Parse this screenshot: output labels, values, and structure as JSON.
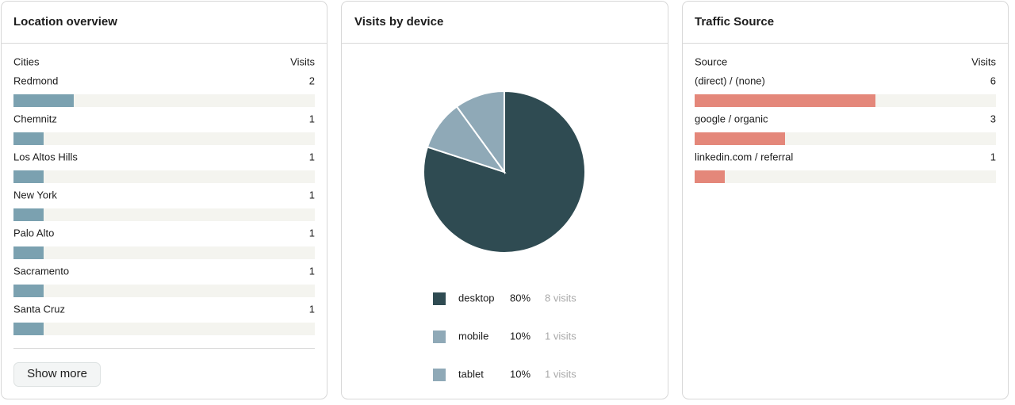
{
  "location": {
    "title": "Location overview",
    "columns": [
      "Cities",
      "Visits"
    ],
    "rows": [
      {
        "name": "Redmond",
        "value": 2
      },
      {
        "name": "Chemnitz",
        "value": 1
      },
      {
        "name": "Los Altos Hills",
        "value": 1
      },
      {
        "name": "New York",
        "value": 1
      },
      {
        "name": "Palo Alto",
        "value": 1
      },
      {
        "name": "Sacramento",
        "value": 1
      },
      {
        "name": "Santa Cruz",
        "value": 1
      }
    ],
    "xlim": [
      0,
      10
    ],
    "color": "#7ba1b0",
    "button": "Show more"
  },
  "chart_data": {
    "type": "pie",
    "title": "Visits by device",
    "categories": [
      "desktop",
      "mobile",
      "tablet"
    ],
    "values": [
      80,
      10,
      10
    ],
    "value_labels": [
      "80%",
      "10%",
      "10%"
    ],
    "visits": [
      "8 visits",
      "1 visits",
      "1 visits"
    ],
    "colors": [
      "#2f4b52",
      "#8fa9b7",
      "#8fa9b7"
    ]
  },
  "traffic": {
    "title": "Traffic Source",
    "columns": [
      "Source",
      "Visits"
    ],
    "rows": [
      {
        "name": "(direct) / (none)",
        "value": 6
      },
      {
        "name": "google / organic",
        "value": 3
      },
      {
        "name": "linkedin.com / referral",
        "value": 1
      }
    ],
    "xlim": [
      0,
      10
    ],
    "color": "#e4877a"
  }
}
